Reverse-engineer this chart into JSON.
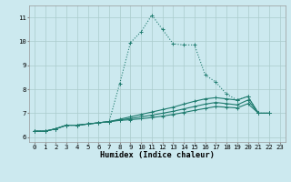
{
  "x_range": [
    -0.5,
    23.5
  ],
  "y_range": [
    5.8,
    11.5
  ],
  "xlabel": "Humidex (Indice chaleur)",
  "background_color": "#cce9ef",
  "grid_color": "#aacccc",
  "line_color": "#1e7b6e",
  "lines": [
    {
      "style": "dotted",
      "x": [
        0,
        1,
        2,
        3,
        4,
        5,
        6,
        7,
        8,
        9,
        10,
        11,
        12,
        13,
        14,
        15,
        16,
        17,
        18,
        19,
        20,
        21,
        22
      ],
      "y": [
        6.25,
        6.25,
        6.35,
        6.5,
        6.5,
        6.55,
        6.6,
        6.65,
        8.25,
        9.95,
        10.4,
        11.1,
        10.5,
        9.9,
        9.85,
        9.85,
        8.6,
        8.3,
        7.8,
        7.55,
        7.7,
        7.0,
        7.0
      ]
    },
    {
      "style": "solid",
      "x": [
        0,
        1,
        2,
        3,
        4,
        5,
        6,
        7,
        8,
        9,
        10,
        11,
        12,
        13,
        14,
        15,
        16,
        17,
        18,
        19,
        20,
        21,
        22
      ],
      "y": [
        6.25,
        6.25,
        6.35,
        6.5,
        6.5,
        6.55,
        6.6,
        6.65,
        6.75,
        6.85,
        6.95,
        7.05,
        7.15,
        7.25,
        7.38,
        7.5,
        7.6,
        7.65,
        7.6,
        7.55,
        7.7,
        7.0,
        7.0
      ]
    },
    {
      "style": "solid",
      "x": [
        0,
        1,
        2,
        3,
        4,
        5,
        6,
        7,
        8,
        9,
        10,
        11,
        12,
        13,
        14,
        15,
        16,
        17,
        18,
        19,
        20,
        21,
        22
      ],
      "y": [
        6.25,
        6.25,
        6.35,
        6.5,
        6.5,
        6.55,
        6.6,
        6.65,
        6.72,
        6.78,
        6.85,
        6.92,
        7.0,
        7.08,
        7.18,
        7.28,
        7.38,
        7.45,
        7.4,
        7.35,
        7.55,
        7.0,
        7.0
      ]
    },
    {
      "style": "solid",
      "x": [
        0,
        1,
        2,
        3,
        4,
        5,
        6,
        7,
        8,
        9,
        10,
        11,
        12,
        13,
        14,
        15,
        16,
        17,
        18,
        19,
        20,
        21,
        22
      ],
      "y": [
        6.25,
        6.25,
        6.35,
        6.5,
        6.5,
        6.55,
        6.6,
        6.65,
        6.7,
        6.73,
        6.77,
        6.82,
        6.88,
        6.95,
        7.03,
        7.12,
        7.2,
        7.28,
        7.25,
        7.22,
        7.4,
        7.0,
        7.0
      ]
    }
  ],
  "yticks": [
    6,
    7,
    8,
    9,
    10,
    11
  ],
  "xticks": [
    0,
    1,
    2,
    3,
    4,
    5,
    6,
    7,
    8,
    9,
    10,
    11,
    12,
    13,
    14,
    15,
    16,
    17,
    18,
    19,
    20,
    21,
    22,
    23
  ],
  "tick_fontsize": 5.2,
  "label_fontsize": 6.2
}
